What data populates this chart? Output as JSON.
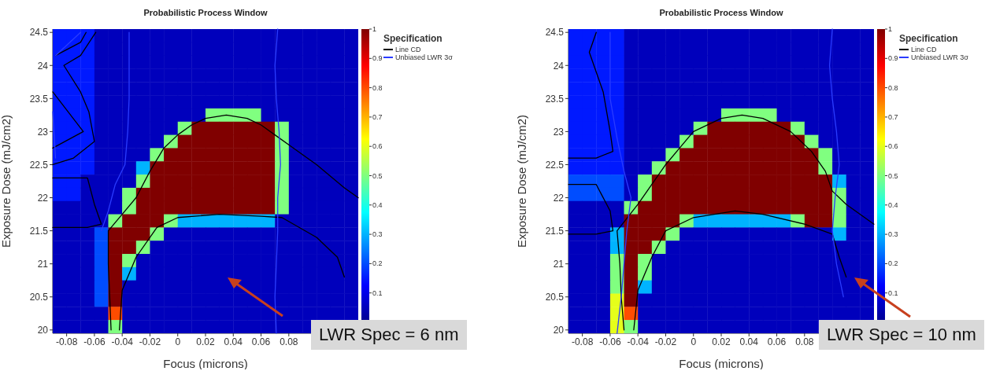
{
  "chart_data": [
    {
      "type": "heatmap",
      "title": "Probabilistic Process Window",
      "xlabel": "Focus (microns)",
      "ylabel": "Exposure Dose (mJ/cm2)",
      "legend_title": "Specification",
      "legend": "right",
      "annotations": [
        "LWR Spec = 6 nm"
      ],
      "xlim": [
        -0.09,
        0.13
      ],
      "ylim": [
        19.95,
        24.55
      ],
      "xticks": [
        -0.08,
        -0.06,
        -0.04,
        -0.02,
        0,
        0.02,
        0.04,
        0.06,
        0.08
      ],
      "yticks": [
        20,
        20.5,
        21,
        21.5,
        22,
        22.5,
        23,
        23.5,
        24,
        24.5
      ],
      "clim": [
        0,
        1
      ],
      "cticks": [
        0.1,
        0.2,
        0.3,
        0.4,
        0.5,
        0.6,
        0.7,
        0.8,
        0.9,
        1
      ],
      "cells": [
        [
          0.15,
          0.15,
          0.15,
          0.05,
          0.05,
          0.05,
          0.05,
          0.05,
          0.05,
          0.05,
          0.05,
          0.05,
          0.05,
          0.05,
          0.05,
          0.05,
          0.05,
          0.05,
          0.05,
          0.05,
          0.05,
          0.05
        ],
        [
          0.15,
          0.15,
          0.15,
          0.05,
          0.05,
          0.05,
          0.05,
          0.05,
          0.05,
          0.05,
          0.05,
          0.05,
          0.05,
          0.05,
          0.05,
          0.05,
          0.05,
          0.05,
          0.05,
          0.05,
          0.05,
          0.05
        ],
        [
          0.15,
          0.15,
          0.15,
          0.05,
          0.05,
          0.05,
          0.05,
          0.05,
          0.05,
          0.05,
          0.05,
          0.05,
          0.05,
          0.05,
          0.05,
          0.05,
          0.05,
          0.05,
          0.05,
          0.05,
          0.05,
          0.05
        ],
        [
          0.15,
          0.15,
          0.15,
          0.05,
          0.05,
          0.05,
          0.05,
          0.05,
          0.05,
          0.05,
          0.05,
          0.05,
          0.05,
          0.05,
          0.05,
          0.05,
          0.05,
          0.05,
          0.05,
          0.05,
          0.05,
          0.05
        ],
        [
          0.15,
          0.15,
          0.15,
          0.05,
          0.05,
          0.05,
          0.05,
          0.05,
          0.05,
          0.05,
          0.05,
          0.05,
          0.05,
          0.05,
          0.05,
          0.05,
          0.05,
          0.05,
          0.05,
          0.05,
          0.05,
          0.05
        ],
        [
          0.15,
          0.15,
          0.15,
          0.05,
          0.05,
          0.05,
          0.05,
          0.05,
          0.05,
          0.05,
          0.05,
          0.05,
          0.05,
          0.05,
          0.05,
          0.05,
          0.05,
          0.05,
          0.05,
          0.05,
          0.05,
          0.05
        ],
        [
          0.15,
          0.15,
          0.15,
          0.05,
          0.05,
          0.05,
          0.05,
          0.05,
          0.05,
          0.05,
          0.05,
          0.5,
          0.5,
          0.5,
          0.5,
          0.05,
          0.05,
          0.05,
          0.05,
          0.05,
          0.05,
          0.05
        ],
        [
          0.15,
          0.15,
          0.15,
          0.05,
          0.05,
          0.05,
          0.05,
          0.05,
          0.05,
          0.5,
          1,
          1,
          1,
          1,
          1,
          1,
          0.5,
          0.05,
          0.05,
          0.05,
          0.05,
          0.05
        ],
        [
          0.15,
          0.15,
          0.15,
          0.05,
          0.05,
          0.05,
          0.05,
          0.05,
          0.5,
          1,
          1,
          1,
          1,
          1,
          1,
          1,
          0.5,
          0.05,
          0.05,
          0.05,
          0.05,
          0.05
        ],
        [
          0.15,
          0.15,
          0.15,
          0.05,
          0.05,
          0.05,
          0.05,
          0.5,
          1,
          1,
          1,
          1,
          1,
          1,
          1,
          1,
          0.5,
          0.05,
          0.05,
          0.05,
          0.05,
          0.05
        ],
        [
          0.15,
          0.15,
          0.15,
          0.05,
          0.05,
          0.05,
          0.3,
          1,
          1,
          1,
          1,
          1,
          1,
          1,
          1,
          1,
          0.5,
          0.05,
          0.05,
          0.05,
          0.05,
          0.05
        ],
        [
          0.15,
          0.15,
          0.05,
          0.05,
          0.05,
          0.05,
          0.5,
          1,
          1,
          1,
          1,
          1,
          1,
          1,
          1,
          1,
          0.5,
          0.05,
          0.05,
          0.05,
          0.05,
          0.05
        ],
        [
          0.15,
          0.15,
          0.05,
          0.05,
          0.05,
          0.5,
          1,
          1,
          1,
          1,
          1,
          1,
          1,
          1,
          1,
          1,
          0.5,
          0.05,
          0.05,
          0.05,
          0.05,
          0.05
        ],
        [
          0.05,
          0.05,
          0.05,
          0.05,
          0.05,
          0.5,
          1,
          1,
          1,
          1,
          1,
          1,
          1,
          1,
          1,
          1,
          0.5,
          0.05,
          0.05,
          0.05,
          0.05,
          0.05
        ],
        [
          0.05,
          0.05,
          0.05,
          0.05,
          0.5,
          1,
          1,
          1,
          0.5,
          0.3,
          0.3,
          0.3,
          0.3,
          0.3,
          0.3,
          0.3,
          0.05,
          0.05,
          0.05,
          0.05,
          0.05,
          0.05
        ],
        [
          0.05,
          0.05,
          0.05,
          0.2,
          1,
          1,
          1,
          0.5,
          0.05,
          0.05,
          0.05,
          0.05,
          0.05,
          0.05,
          0.05,
          0.05,
          0.05,
          0.05,
          0.05,
          0.05,
          0.05,
          0.05
        ],
        [
          0.05,
          0.05,
          0.05,
          0.2,
          1,
          1,
          0.5,
          0.05,
          0.05,
          0.05,
          0.05,
          0.05,
          0.05,
          0.05,
          0.05,
          0.05,
          0.05,
          0.05,
          0.05,
          0.05,
          0.05,
          0.05
        ],
        [
          0.05,
          0.05,
          0.05,
          0.2,
          1,
          0.5,
          0.05,
          0.05,
          0.05,
          0.05,
          0.05,
          0.05,
          0.05,
          0.05,
          0.05,
          0.05,
          0.05,
          0.05,
          0.05,
          0.05,
          0.05,
          0.05
        ],
        [
          0.05,
          0.05,
          0.05,
          0.2,
          1,
          0.3,
          0.05,
          0.05,
          0.05,
          0.05,
          0.05,
          0.05,
          0.05,
          0.05,
          0.05,
          0.05,
          0.05,
          0.05,
          0.05,
          0.05,
          0.05,
          0.05
        ],
        [
          0.05,
          0.05,
          0.05,
          0.2,
          1,
          0.05,
          0.05,
          0.05,
          0.05,
          0.05,
          0.05,
          0.05,
          0.05,
          0.05,
          0.05,
          0.05,
          0.05,
          0.05,
          0.05,
          0.05,
          0.05,
          0.05
        ],
        [
          0.05,
          0.05,
          0.05,
          0.2,
          1,
          0.05,
          0.05,
          0.05,
          0.05,
          0.05,
          0.05,
          0.05,
          0.05,
          0.05,
          0.05,
          0.05,
          0.05,
          0.05,
          0.05,
          0.05,
          0.05,
          0.05
        ],
        [
          0.05,
          0.05,
          0.05,
          0.05,
          0.8,
          0.05,
          0.05,
          0.05,
          0.05,
          0.05,
          0.05,
          0.05,
          0.05,
          0.05,
          0.05,
          0.05,
          0.05,
          0.05,
          0.05,
          0.05,
          0.05,
          0.05
        ],
        [
          0.05,
          0.05,
          0.05,
          0.05,
          0.5,
          0.05,
          0.05,
          0.05,
          0.05,
          0.05,
          0.05,
          0.05,
          0.05,
          0.05,
          0.05,
          0.05,
          0.05,
          0.05,
          0.05,
          null,
          null,
          null
        ]
      ],
      "series": [
        {
          "name": "Line CD",
          "type": "line",
          "color": "#000000",
          "x": [
            -0.048,
            -0.049,
            -0.05,
            -0.05,
            -0.04,
            -0.03,
            -0.02,
            -0.01,
            0,
            0.01,
            0.02,
            0.035,
            0.05,
            0.06,
            0.07,
            0.08,
            0.1,
            0.12,
            0.13,
            null,
            -0.042,
            -0.04,
            -0.03,
            -0.015,
            0,
            0.03,
            0.06,
            0.075,
            0.1,
            0.115,
            0.12,
            null,
            -0.059,
            -0.07,
            -0.082,
            -0.07,
            -0.064,
            -0.06,
            -0.075,
            -0.09,
            null,
            -0.066,
            -0.07,
            -0.088,
            null,
            -0.09,
            -0.068,
            -0.09,
            null,
            -0.09,
            -0.065,
            -0.06,
            -0.055,
            -0.065,
            -0.09
          ],
          "values": [
            20,
            20.5,
            21,
            21.5,
            21.75,
            22,
            22.4,
            22.75,
            22.95,
            23.1,
            23.2,
            23.25,
            23.2,
            23.1,
            22.95,
            22.8,
            22.5,
            22.15,
            22,
            null,
            20,
            20.6,
            21.1,
            21.55,
            21.7,
            21.75,
            21.72,
            21.7,
            21.4,
            21.1,
            20.8,
            null,
            24.5,
            24.15,
            24,
            23.6,
            23.3,
            22.85,
            22.6,
            22.5,
            null,
            24.5,
            24.35,
            24.15,
            null,
            23.6,
            23,
            22.75,
            null,
            22.3,
            22.3,
            21.9,
            21.6,
            21.55,
            21.55
          ]
        },
        {
          "name": "Unbiased LWR 3σ",
          "type": "line",
          "color": "#2a3cff",
          "x": [
            0.072,
            0.07,
            0.071,
            0.073,
            0.074,
            0.072,
            0.072,
            0.071,
            0.07,
            0.071,
            null,
            -0.035,
            -0.035,
            -0.036,
            -0.038,
            -0.045,
            -0.05,
            -0.055,
            null,
            -0.07,
            -0.088,
            null,
            -0.09,
            -0.088
          ],
          "values": [
            24.55,
            24,
            23.5,
            23,
            22.5,
            22,
            21.5,
            21,
            20.5,
            19.95,
            null,
            24.5,
            23.5,
            23,
            22.5,
            22.2,
            21.8,
            21.5,
            null,
            24.5,
            24.15,
            null,
            23.3,
            22.6
          ]
        }
      ]
    },
    {
      "type": "heatmap",
      "title": "Probabilistic Process Window",
      "xlabel": "Focus (microns)",
      "ylabel": "Exposure Dose (mJ/cm2)",
      "legend_title": "Specification",
      "legend": "right",
      "annotations": [
        "LWR Spec = 10 nm"
      ],
      "xlim": [
        -0.09,
        0.13
      ],
      "ylim": [
        19.95,
        24.55
      ],
      "xticks": [
        -0.08,
        -0.06,
        -0.04,
        -0.02,
        0,
        0.02,
        0.04,
        0.06,
        0.08
      ],
      "yticks": [
        20,
        20.5,
        21,
        21.5,
        22,
        22.5,
        23,
        23.5,
        24,
        24.5
      ],
      "clim": [
        0,
        1
      ],
      "cticks": [
        0.1,
        0.2,
        0.3,
        0.4,
        0.5,
        0.6,
        0.7,
        0.8,
        0.9,
        1
      ],
      "cells": [
        [
          0.15,
          0.15,
          0.15,
          0.15,
          0.05,
          0.05,
          0.05,
          0.05,
          0.05,
          0.05,
          0.05,
          0.05,
          0.05,
          0.05,
          0.05,
          0.05,
          0.05,
          0.05,
          0.05,
          0.05,
          0.05,
          0.05
        ],
        [
          0.15,
          0.15,
          0.15,
          0.15,
          0.05,
          0.05,
          0.05,
          0.05,
          0.05,
          0.05,
          0.05,
          0.05,
          0.05,
          0.05,
          0.05,
          0.05,
          0.05,
          0.05,
          0.05,
          0.05,
          0.05,
          0.05
        ],
        [
          0.15,
          0.15,
          0.15,
          0.15,
          0.05,
          0.05,
          0.05,
          0.05,
          0.05,
          0.05,
          0.05,
          0.05,
          0.05,
          0.05,
          0.05,
          0.05,
          0.05,
          0.05,
          0.05,
          0.05,
          0.05,
          0.05
        ],
        [
          0.15,
          0.15,
          0.15,
          0.15,
          0.05,
          0.05,
          0.05,
          0.05,
          0.05,
          0.05,
          0.05,
          0.05,
          0.05,
          0.05,
          0.05,
          0.05,
          0.05,
          0.05,
          0.05,
          0.05,
          0.05,
          0.05
        ],
        [
          0.15,
          0.15,
          0.15,
          0.15,
          0.05,
          0.05,
          0.05,
          0.05,
          0.05,
          0.05,
          0.05,
          0.05,
          0.05,
          0.05,
          0.05,
          0.05,
          0.05,
          0.05,
          0.05,
          0.05,
          0.05,
          0.05
        ],
        [
          0.15,
          0.15,
          0.15,
          0.15,
          0.05,
          0.05,
          0.05,
          0.05,
          0.05,
          0.05,
          0.05,
          0.05,
          0.05,
          0.05,
          0.05,
          0.05,
          0.05,
          0.05,
          0.05,
          0.05,
          0.05,
          0.05
        ],
        [
          0.15,
          0.15,
          0.15,
          0.15,
          0.05,
          0.05,
          0.05,
          0.05,
          0.05,
          0.05,
          0.05,
          0.5,
          0.5,
          0.5,
          0.5,
          0.05,
          0.05,
          0.05,
          0.05,
          0.05,
          0.05,
          0.05
        ],
        [
          0.15,
          0.15,
          0.15,
          0.15,
          0.05,
          0.05,
          0.05,
          0.05,
          0.05,
          0.5,
          1,
          1,
          1,
          1,
          1,
          1,
          0.5,
          0.05,
          0.05,
          0.05,
          0.05,
          0.05
        ],
        [
          0.15,
          0.15,
          0.15,
          0.15,
          0.05,
          0.05,
          0.05,
          0.05,
          0.5,
          1,
          1,
          1,
          1,
          1,
          1,
          1,
          1,
          0.5,
          0.05,
          0.05,
          0.05,
          0.05
        ],
        [
          0.15,
          0.15,
          0.15,
          0.15,
          0.05,
          0.05,
          0.05,
          0.5,
          1,
          1,
          1,
          1,
          1,
          1,
          1,
          1,
          1,
          1,
          0.5,
          0.05,
          0.05,
          0.05
        ],
        [
          0.15,
          0.15,
          0.15,
          0.15,
          0.05,
          0.05,
          0.5,
          1,
          1,
          1,
          1,
          1,
          1,
          1,
          1,
          1,
          1,
          1,
          0.5,
          0.05,
          0.05,
          0.05
        ],
        [
          0.2,
          0.2,
          0.2,
          0.2,
          0.05,
          0.5,
          1,
          1,
          1,
          1,
          1,
          1,
          1,
          1,
          1,
          1,
          1,
          1,
          1,
          0.3,
          0.05,
          0.05
        ],
        [
          0.2,
          0.2,
          0.2,
          0.2,
          0.05,
          0.5,
          1,
          1,
          1,
          1,
          1,
          1,
          1,
          1,
          1,
          1,
          1,
          1,
          1,
          0.5,
          0.05,
          0.05
        ],
        [
          0.05,
          0.05,
          0.05,
          0.05,
          0.5,
          1,
          1,
          1,
          1,
          1,
          1,
          1,
          1,
          1,
          1,
          1,
          1,
          1,
          1,
          0.5,
          0.05,
          0.05
        ],
        [
          0.05,
          0.05,
          0.05,
          0.05,
          1,
          1,
          1,
          1,
          0.5,
          0.3,
          0.3,
          0.3,
          0.3,
          0.3,
          0.3,
          0.3,
          0.5,
          1,
          1,
          0.5,
          0.05,
          0.05
        ],
        [
          0.05,
          0.05,
          0.05,
          0.3,
          1,
          1,
          1,
          0.5,
          0.05,
          0.05,
          0.05,
          0.05,
          0.05,
          0.05,
          0.05,
          0.05,
          0.05,
          0.05,
          0.05,
          0.3,
          0.05,
          0.05
        ],
        [
          0.05,
          0.05,
          0.05,
          0.3,
          1,
          1,
          0.5,
          0.05,
          0.05,
          0.05,
          0.05,
          0.05,
          0.05,
          0.05,
          0.05,
          0.05,
          0.05,
          0.05,
          0.05,
          0.05,
          0.05,
          0.05
        ],
        [
          0.05,
          0.05,
          0.05,
          0.5,
          1,
          0.5,
          0.05,
          0.05,
          0.05,
          0.05,
          0.05,
          0.05,
          0.05,
          0.05,
          0.05,
          0.05,
          0.05,
          0.05,
          0.05,
          0.05,
          0.05,
          0.05
        ],
        [
          0.05,
          0.05,
          0.05,
          0.5,
          1,
          0.5,
          0.05,
          0.05,
          0.05,
          0.05,
          0.05,
          0.05,
          0.05,
          0.05,
          0.05,
          0.05,
          0.05,
          0.05,
          0.05,
          0.05,
          0.05,
          0.05
        ],
        [
          0.05,
          0.05,
          0.05,
          0.5,
          1,
          0.3,
          0.05,
          0.05,
          0.05,
          0.05,
          0.05,
          0.05,
          0.05,
          0.05,
          0.05,
          0.05,
          0.05,
          0.05,
          0.05,
          0.05,
          0.05,
          0.05
        ],
        [
          0.05,
          0.05,
          0.05,
          0.6,
          1,
          0.05,
          0.05,
          0.05,
          0.05,
          0.05,
          0.05,
          0.05,
          0.05,
          0.05,
          0.05,
          0.05,
          0.05,
          0.05,
          0.05,
          0.05,
          0.05,
          0.05
        ],
        [
          0.05,
          0.05,
          0.05,
          0.6,
          0.8,
          0.05,
          0.05,
          0.05,
          0.05,
          0.05,
          0.05,
          0.05,
          0.05,
          0.05,
          0.05,
          0.05,
          0.05,
          0.05,
          0.05,
          0.05,
          0.05,
          0.05
        ],
        [
          0.05,
          0.05,
          0.05,
          0.6,
          0.5,
          0.05,
          0.05,
          0.05,
          0.05,
          0.05,
          0.05,
          0.05,
          0.05,
          0.05,
          0.05,
          0.05,
          0.05,
          0.05,
          null,
          null,
          null,
          null
        ]
      ],
      "series": [
        {
          "name": "Line CD",
          "type": "line",
          "color": "#000000",
          "x": [
            -0.05,
            -0.052,
            -0.053,
            -0.055,
            -0.04,
            -0.03,
            -0.02,
            -0.01,
            0,
            0.02,
            0.035,
            0.05,
            0.07,
            0.085,
            0.095,
            0.1,
            0.11,
            0.13,
            null,
            -0.043,
            -0.04,
            -0.03,
            -0.02,
            0,
            0.03,
            0.05,
            0.08,
            0.1,
            0.105,
            0.11,
            null,
            -0.07,
            -0.075,
            -0.065,
            -0.06,
            -0.058,
            -0.07,
            -0.09,
            null,
            -0.09,
            -0.07,
            -0.06,
            -0.058,
            -0.07,
            -0.09
          ],
          "values": [
            20,
            20.5,
            21,
            21.5,
            21.9,
            22.2,
            22.5,
            22.75,
            23,
            23.2,
            23.25,
            23.2,
            23,
            22.7,
            22.4,
            22.1,
            21.9,
            21.6,
            null,
            20,
            20.6,
            21.1,
            21.5,
            21.7,
            21.8,
            21.75,
            21.6,
            21.45,
            21.1,
            20.8,
            null,
            24.5,
            24.2,
            23.6,
            23,
            22.7,
            22.6,
            22.6,
            null,
            22.2,
            22.2,
            21.8,
            21.5,
            21.45,
            21.45
          ]
        },
        {
          "name": "Unbiased LWR 3σ",
          "type": "line",
          "color": "#2a3cff",
          "x": [
            0.1,
            0.098,
            0.1,
            0.103,
            0.105,
            0.102,
            0.1,
            0.103,
            0.108,
            null,
            -0.055,
            -0.052,
            -0.05,
            -0.048,
            -0.045,
            -0.05,
            -0.055,
            -0.06,
            -0.06
          ],
          "values": [
            24.55,
            24,
            23.5,
            23,
            22.5,
            22,
            21.5,
            21,
            20.5,
            null,
            19.95,
            20.5,
            21,
            21.5,
            22,
            22.4,
            22.9,
            23.5,
            24.5
          ]
        }
      ]
    }
  ]
}
